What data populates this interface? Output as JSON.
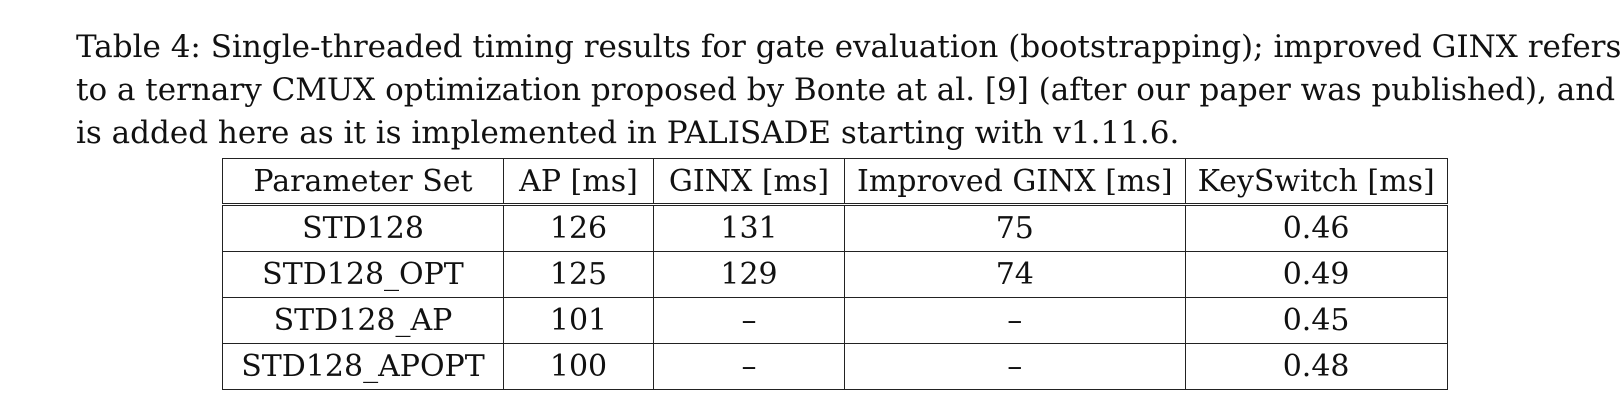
{
  "caption": {
    "lines": [
      "Table 4: Single-threaded timing results for gate evaluation (bootstrapping); improved GINX refers",
      "to a ternary CMUX optimization proposed by Bonte at al. [9] (after our paper was published), and",
      "is added here as it is implemented in PALISADE starting with v1.11.6."
    ]
  },
  "table": {
    "headers": [
      "Parameter Set",
      "AP [ms]",
      "GINX [ms]",
      "Improved GINX [ms]",
      "KeySwitch [ms]"
    ],
    "rows": [
      [
        "STD128",
        "126",
        "131",
        "75",
        "0.46"
      ],
      [
        "STD128_OPT",
        "125",
        "129",
        "74",
        "0.49"
      ],
      [
        "STD128_AP",
        "101",
        "–",
        "–",
        "0.45"
      ],
      [
        "STD128_APOPT",
        "100",
        "–",
        "–",
        "0.48"
      ]
    ]
  }
}
